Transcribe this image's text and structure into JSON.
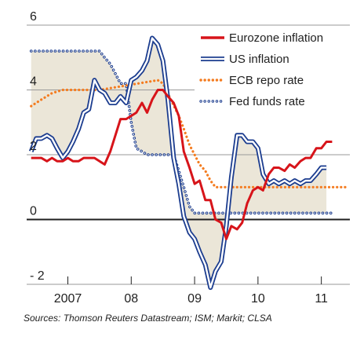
{
  "chart_data": {
    "type": "line",
    "title": "",
    "xlabel": "",
    "ylabel": "",
    "ylim": [
      -2,
      6
    ],
    "xlim": [
      2006.35,
      2011.45
    ],
    "y_ticks": [
      {
        "value": 6,
        "label": "6"
      },
      {
        "value": 4,
        "label": "4"
      },
      {
        "value": 2,
        "label": "2"
      },
      {
        "value": 0,
        "label": "0"
      },
      {
        "value": -2,
        "label": "- 2"
      }
    ],
    "x_ticks": [
      {
        "value": 2007.0,
        "label": "2007"
      },
      {
        "value": 2008.0,
        "label": "08"
      },
      {
        "value": 2009.0,
        "label": "09"
      },
      {
        "value": 2010.0,
        "label": "10"
      },
      {
        "value": 2011.0,
        "label": "11"
      }
    ],
    "grid": "horizontal",
    "legend_position": "top-right",
    "shaded_area": {
      "from_series": "US inflation",
      "to_series": "Fed funds rate",
      "color": "#ebe6d8"
    },
    "series": [
      {
        "name": "Eurozone inflation",
        "style": "solid",
        "color": "#d7141a",
        "x": [
          2006.42,
          2006.58,
          2006.67,
          2006.75,
          2006.83,
          2006.92,
          2007.0,
          2007.08,
          2007.17,
          2007.25,
          2007.33,
          2007.42,
          2007.5,
          2007.58,
          2007.67,
          2007.75,
          2007.83,
          2007.92,
          2008.0,
          2008.08,
          2008.17,
          2008.25,
          2008.33,
          2008.42,
          2008.5,
          2008.58,
          2008.67,
          2008.75,
          2008.83,
          2008.92,
          2009.0,
          2009.08,
          2009.17,
          2009.25,
          2009.33,
          2009.42,
          2009.5,
          2009.58,
          2009.67,
          2009.75,
          2009.83,
          2009.92,
          2010.0,
          2010.08,
          2010.17,
          2010.25,
          2010.33,
          2010.42,
          2010.5,
          2010.58,
          2010.67,
          2010.75,
          2010.83,
          2010.92,
          2011.0,
          2011.08,
          2011.17
        ],
        "y": [
          1.9,
          1.9,
          1.8,
          1.9,
          1.8,
          1.8,
          1.9,
          1.8,
          1.8,
          1.9,
          1.9,
          1.9,
          1.8,
          1.7,
          2.1,
          2.6,
          3.1,
          3.1,
          3.2,
          3.3,
          3.6,
          3.3,
          3.7,
          4.0,
          4.0,
          3.8,
          3.6,
          3.2,
          2.1,
          1.6,
          1.1,
          1.2,
          0.6,
          0.6,
          0.0,
          -0.1,
          -0.6,
          -0.2,
          -0.3,
          -0.1,
          0.5,
          0.9,
          1.0,
          0.9,
          1.4,
          1.6,
          1.6,
          1.5,
          1.7,
          1.6,
          1.8,
          1.9,
          1.9,
          2.2,
          2.2,
          2.4,
          2.4
        ]
      },
      {
        "name": "US inflation",
        "style": "double",
        "color": "#1c3d8f",
        "x": [
          2006.42,
          2006.5,
          2006.58,
          2006.67,
          2006.75,
          2006.83,
          2006.92,
          2007.0,
          2007.08,
          2007.17,
          2007.25,
          2007.33,
          2007.42,
          2007.5,
          2007.58,
          2007.67,
          2007.75,
          2007.83,
          2007.92,
          2008.0,
          2008.08,
          2008.17,
          2008.25,
          2008.33,
          2008.42,
          2008.5,
          2008.58,
          2008.67,
          2008.75,
          2008.83,
          2008.92,
          2009.0,
          2009.08,
          2009.17,
          2009.25,
          2009.33,
          2009.42,
          2009.5,
          2009.58,
          2009.67,
          2009.75,
          2009.83,
          2009.92,
          2010.0,
          2010.08,
          2010.17,
          2010.25,
          2010.33,
          2010.42,
          2010.5,
          2010.58,
          2010.67,
          2010.75,
          2010.83,
          2010.92,
          2011.0,
          2011.08
        ],
        "y": [
          2.1,
          2.5,
          2.5,
          2.6,
          2.5,
          2.2,
          1.9,
          2.1,
          2.4,
          2.8,
          3.3,
          3.4,
          4.3,
          4.0,
          3.9,
          3.6,
          3.6,
          3.8,
          3.6,
          4.3,
          4.4,
          4.6,
          4.9,
          5.6,
          5.4,
          4.9,
          3.7,
          1.9,
          1.1,
          0.1,
          -0.4,
          -0.6,
          -1.0,
          -1.4,
          -2.1,
          -1.6,
          -1.3,
          -0.2,
          1.3,
          2.6,
          2.6,
          2.4,
          2.4,
          2.2,
          1.4,
          1.1,
          1.2,
          1.1,
          1.2,
          1.1,
          1.2,
          1.1,
          1.2,
          1.2,
          1.4,
          1.6,
          1.6
        ]
      },
      {
        "name": "ECB repo rate",
        "style": "dotted",
        "color": "#f47c20",
        "x": [
          2006.42,
          2006.58,
          2006.75,
          2006.92,
          2007.08,
          2007.25,
          2007.42,
          2007.5,
          2008.42,
          2008.5,
          2008.75,
          2008.83,
          2008.92,
          2009.0,
          2009.08,
          2009.17,
          2009.25,
          2009.33,
          2009.42,
          2010.5,
          2011.25,
          2011.42
        ],
        "y": [
          3.5,
          3.7,
          3.9,
          4.0,
          4.0,
          4.0,
          4.0,
          4.0,
          4.3,
          4.2,
          3.2,
          2.8,
          2.3,
          2.0,
          1.7,
          1.5,
          1.2,
          1.0,
          1.0,
          1.0,
          1.0,
          1.0
        ]
      },
      {
        "name": "Fed funds rate",
        "style": "dotted",
        "color": "#1c3d8f",
        "x": [
          2006.42,
          2006.58,
          2006.75,
          2007.0,
          2007.5,
          2007.58,
          2007.67,
          2007.75,
          2007.83,
          2007.92,
          2008.0,
          2008.08,
          2008.17,
          2008.25,
          2008.33,
          2008.5,
          2008.67,
          2008.75,
          2008.83,
          2008.92,
          2009.0,
          2009.5,
          2010.0,
          2010.5,
          2011.0,
          2011.17
        ],
        "y": [
          5.2,
          5.2,
          5.2,
          5.2,
          5.2,
          5.0,
          4.8,
          4.5,
          4.2,
          4.2,
          3.0,
          2.2,
          2.1,
          2.0,
          2.0,
          2.0,
          2.0,
          1.5,
          1.0,
          0.4,
          0.2,
          0.2,
          0.2,
          0.2,
          0.2,
          0.2
        ]
      }
    ],
    "source": "Sources: Thomson Reuters Datastream; ISM; Markit; CLSA"
  }
}
